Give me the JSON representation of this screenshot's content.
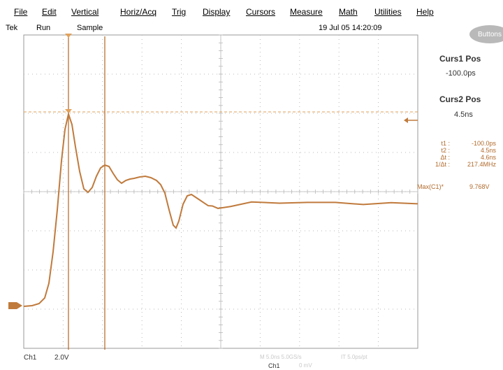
{
  "menu": [
    "File",
    "Edit",
    "Vertical",
    "Horiz/Acq",
    "Trig",
    "Display",
    "Cursors",
    "Measure",
    "Math",
    "Utilities",
    "Help"
  ],
  "status": {
    "brand": "Tek",
    "run_state": "Run",
    "acq_mode": "Sample",
    "datetime": "19 Jul 05 14:20:09"
  },
  "buttons_label": "Buttons",
  "cursors": {
    "curs1_label": "Curs1 Pos",
    "curs1_value": "-100.0ps",
    "curs2_label": "Curs2 Pos",
    "curs2_value": "4.5ns"
  },
  "readout": [
    {
      "key": "t1 :",
      "value": "-100.0ps"
    },
    {
      "key": "t2 :",
      "value": "4.5ns"
    },
    {
      "key": "Δt :",
      "value": "4.6ns"
    },
    {
      "key": "1/Δt :",
      "value": "217.4MHz"
    }
  ],
  "measurement": {
    "label": "Max(C1)*",
    "value": "9.768V"
  },
  "bottom": {
    "channel": "Ch1",
    "scale": "2.0V",
    "faded_timebase": "M 5.0ns 5.0GS/s",
    "faded_points": "IT 5.0ps/pt",
    "faded_trigger_channel": "Ch1",
    "faded_trigger_level": "0 mV"
  },
  "colors": {
    "trace": "#c07a3c",
    "cursor": "#b86f2e",
    "grid": "#b8b8b8",
    "cursor_line": "#e2a15a"
  },
  "icons": {
    "marker_left": "ground-marker-icon",
    "marker_right": "trigger-level-icon"
  }
}
